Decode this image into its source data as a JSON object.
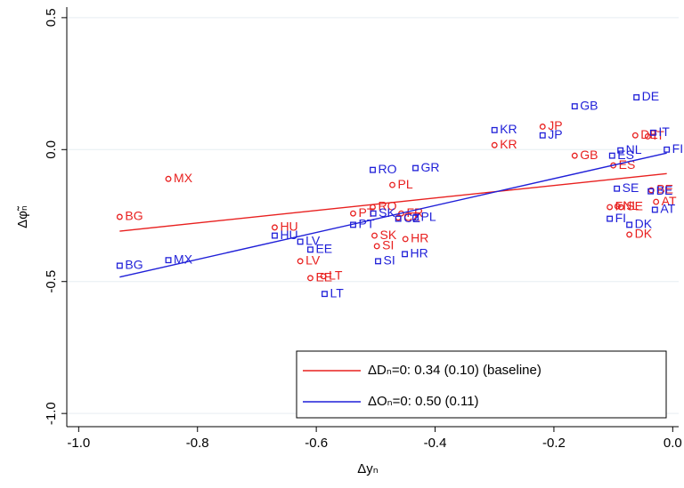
{
  "chart_data": {
    "type": "scatter",
    "x_label": "Δyₙ",
    "y_label": "Δφ̃ₙ",
    "xlim": [
      -1.02,
      0.01
    ],
    "ylim": [
      -1.05,
      0.54
    ],
    "xticks": [
      {
        "value": -1.0,
        "label": "-1.0"
      },
      -0.8,
      -0.6,
      -0.4,
      -0.2,
      {
        "value": 0.0,
        "label": "0.0"
      }
    ],
    "yticks": [
      0.5,
      {
        "value": 0.0,
        "label": "0.0"
      },
      -0.5,
      {
        "value": -1.0,
        "label": "-1.0"
      }
    ],
    "grid": true,
    "series": [
      {
        "name": "ΔDₙ=0: 0.34 (0.10) (baseline)",
        "color": "#e8201f",
        "marker": "circle",
        "labels": [
          "MX",
          "HU",
          "BG",
          "LV",
          "EE",
          "LT",
          "PT",
          "RO",
          "SK",
          "SI",
          "CZ",
          "FR",
          "HR",
          "PL",
          "KR",
          "JP",
          "GB",
          "ES",
          "DE",
          "IT",
          "FI",
          "NL",
          "SE",
          "BE",
          "AT",
          "DK"
        ],
        "x": [
          -0.849,
          -0.67,
          -0.931,
          -0.627,
          -0.61,
          -0.588,
          -0.538,
          -0.505,
          -0.502,
          -0.498,
          -0.462,
          -0.457,
          -0.45,
          -0.472,
          -0.3,
          -0.219,
          -0.165,
          -0.1,
          -0.063,
          -0.042,
          -0.106,
          -0.093,
          -0.087,
          -0.036,
          -0.028,
          -0.073
        ],
        "values": [
          -0.111,
          -0.295,
          -0.255,
          -0.423,
          -0.487,
          -0.48,
          -0.242,
          -0.218,
          -0.326,
          -0.366,
          -0.258,
          -0.242,
          -0.339,
          -0.134,
          0.017,
          0.087,
          -0.023,
          -0.06,
          0.054,
          0.05,
          -0.218,
          -0.215,
          -0.218,
          -0.154,
          -0.198,
          -0.322
        ],
        "fit_x": [
          -0.931,
          -0.01
        ],
        "fit_y": [
          -0.309,
          -0.091
        ]
      },
      {
        "name": "ΔOₙ=0: 0.50 (0.11)",
        "color": "#1f1fd8",
        "marker": "square",
        "labels": [
          "BG",
          "MX",
          "HU",
          "LV",
          "EE",
          "LT",
          "PT",
          "RO",
          "SK",
          "CZ",
          "PL",
          "SI",
          "HR",
          "GR",
          "KR",
          "JP",
          "GB",
          "DE",
          "NL",
          "ES",
          "IT",
          "FI",
          "SE",
          "BE",
          "AT",
          "FI",
          "DK"
        ],
        "x": [
          -0.931,
          -0.849,
          -0.67,
          -0.627,
          -0.61,
          -0.586,
          -0.538,
          -0.505,
          -0.504,
          -0.462,
          -0.433,
          -0.496,
          -0.451,
          -0.433,
          -0.3,
          -0.219,
          -0.165,
          -0.061,
          -0.088,
          -0.102,
          -0.033,
          -0.01,
          -0.094,
          -0.037,
          -0.03,
          -0.106,
          -0.073
        ],
        "values": [
          -0.44,
          -0.419,
          -0.326,
          -0.349,
          -0.379,
          -0.547,
          -0.285,
          -0.077,
          -0.242,
          -0.262,
          -0.258,
          -0.423,
          -0.396,
          -0.07,
          0.074,
          0.054,
          0.164,
          0.198,
          -0.003,
          -0.023,
          0.064,
          0.0,
          -0.148,
          -0.158,
          -0.228,
          -0.262,
          -0.285
        ],
        "fit_x": [
          -0.931,
          -0.01
        ],
        "fit_y": [
          -0.483,
          -0.013
        ]
      }
    ]
  }
}
